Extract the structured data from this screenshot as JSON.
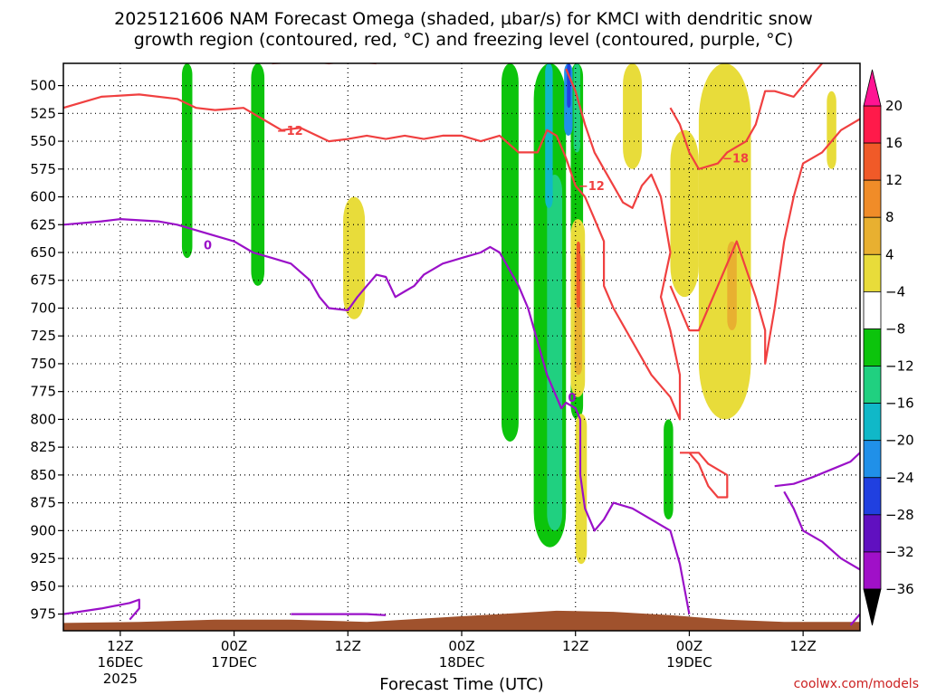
{
  "chart_data": {
    "type": "heatmap",
    "title_line1": "2025121606 NAM Forecast Omega (shaded, µbar/s) for KMCI with dendritic snow",
    "title_line2": "growth region (contoured, red, °C) and freezing level (contoured, purple, °C)",
    "xlabel": "Forecast Time (UTC)",
    "credit": "coolwx.com/models",
    "x_range_hours": [
      0,
      84
    ],
    "y_axis": {
      "scale": "pressure",
      "range_mb": [
        480,
        990
      ],
      "ticks": [
        "500",
        "525",
        "550",
        "575",
        "600",
        "625",
        "650",
        "675",
        "700",
        "725",
        "750",
        "775",
        "800",
        "825",
        "850",
        "875",
        "900",
        "925",
        "950",
        "975"
      ]
    },
    "x_ticks": [
      {
        "hour": 6,
        "label": "12Z",
        "sub1": "16DEC",
        "sub2": "2025"
      },
      {
        "hour": 18,
        "label": "00Z",
        "sub1": "17DEC",
        "sub2": ""
      },
      {
        "hour": 30,
        "label": "12Z",
        "sub1": "",
        "sub2": ""
      },
      {
        "hour": 42,
        "label": "00Z",
        "sub1": "18DEC",
        "sub2": ""
      },
      {
        "hour": 54,
        "label": "12Z",
        "sub1": "",
        "sub2": ""
      },
      {
        "hour": 66,
        "label": "00Z",
        "sub1": "19DEC",
        "sub2": ""
      },
      {
        "hour": 78,
        "label": "12Z",
        "sub1": "",
        "sub2": ""
      }
    ],
    "colorbar": {
      "labels": [
        "20",
        "16",
        "12",
        "8",
        "4",
        "−4",
        "−8",
        "−12",
        "−16",
        "−20",
        "−24",
        "−28",
        "−32",
        "−36"
      ],
      "colors": [
        "#ff1a4a",
        "#f05a28",
        "#f08c28",
        "#e8b030",
        "#e8dc3a",
        "#ffffff",
        "#0cc40c",
        "#20d080",
        "#10b8c8",
        "#2090e8",
        "#2040e0",
        "#6010c0",
        "#a010c8",
        "#b0b0b0"
      ],
      "top_arrow": "#ff1493",
      "bottom_arrow": "#000000"
    },
    "contour_labels": [
      {
        "text": "−12",
        "color": "red"
      },
      {
        "text": "−12",
        "color": "red"
      },
      {
        "text": "−18",
        "color": "red"
      },
      {
        "text": "0",
        "color": "purple"
      },
      {
        "text": "0",
        "color": "purple"
      }
    ],
    "omega_regions": [
      {
        "level": "-4",
        "color": "#0cc40c",
        "t0": 12.5,
        "t1": 13.6,
        "p_top": 480,
        "p_bot": 655
      },
      {
        "level": "-4",
        "color": "#0cc40c",
        "t0": 19.8,
        "t1": 21.2,
        "p_top": 480,
        "p_bot": 680
      },
      {
        "level": "-4",
        "color": "#0cc40c",
        "t0": 46.2,
        "t1": 48.0,
        "p_top": 480,
        "p_bot": 820
      },
      {
        "level": "-4",
        "color": "#0cc40c",
        "t0": 49.6,
        "t1": 53.0,
        "p_top": 480,
        "p_bot": 915
      },
      {
        "level": "-4",
        "color": "#0cc40c",
        "t0": 53.5,
        "t1": 54.8,
        "p_top": 480,
        "p_bot": 800
      },
      {
        "level": "-4",
        "color": "#0cc40c",
        "t0": 63.3,
        "t1": 64.3,
        "p_top": 800,
        "p_bot": 890
      },
      {
        "level": "-8",
        "color": "#20d080",
        "t0": 51.0,
        "t1": 52.6,
        "p_top": 580,
        "p_bot": 900
      },
      {
        "level": "-8",
        "color": "#20d080",
        "t0": 53.8,
        "t1": 54.5,
        "p_top": 480,
        "p_bot": 560
      },
      {
        "level": "-12",
        "color": "#10b8c8",
        "t0": 50.8,
        "t1": 51.6,
        "p_top": 480,
        "p_bot": 610
      },
      {
        "level": "-16",
        "color": "#2090e8",
        "t0": 52.8,
        "t1": 53.7,
        "p_top": 480,
        "p_bot": 545
      },
      {
        "level": "-20",
        "color": "#2040e0",
        "t0": 53.1,
        "t1": 53.5,
        "p_top": 480,
        "p_bot": 520
      },
      {
        "level": "4",
        "color": "#e8dc3a",
        "t0": 29.5,
        "t1": 31.8,
        "p_top": 600,
        "p_bot": 710
      },
      {
        "level": "4",
        "color": "#e8dc3a",
        "t0": 59.0,
        "t1": 61.0,
        "p_top": 480,
        "p_bot": 575
      },
      {
        "level": "4",
        "color": "#e8dc3a",
        "t0": 64.0,
        "t1": 67.0,
        "p_top": 540,
        "p_bot": 690
      },
      {
        "level": "4",
        "color": "#e8dc3a",
        "t0": 67.0,
        "t1": 72.5,
        "p_top": 480,
        "p_bot": 800
      },
      {
        "level": "4",
        "color": "#e8dc3a",
        "t0": 53.5,
        "t1": 55.0,
        "p_top": 620,
        "p_bot": 780
      },
      {
        "level": "4",
        "color": "#e8dc3a",
        "t0": 54.0,
        "t1": 55.2,
        "p_top": 795,
        "p_bot": 930
      },
      {
        "level": "4",
        "color": "#e8dc3a",
        "t0": 80.5,
        "t1": 81.5,
        "p_top": 505,
        "p_bot": 575
      },
      {
        "level": "8",
        "color": "#e8b030",
        "t0": 53.9,
        "t1": 54.7,
        "p_top": 650,
        "p_bot": 760
      },
      {
        "level": "8",
        "color": "#e8b030",
        "t0": 70.0,
        "t1": 71.0,
        "p_top": 640,
        "p_bot": 720
      },
      {
        "level": "12",
        "color": "#f05a28",
        "t0": 54.1,
        "t1": 54.5,
        "p_top": 640,
        "p_bot": 700
      }
    ],
    "red_contours": [
      {
        "level": -12,
        "points": [
          [
            0,
            520
          ],
          [
            4,
            510
          ],
          [
            8,
            508
          ],
          [
            12,
            512
          ],
          [
            14,
            520
          ],
          [
            16,
            522
          ],
          [
            19,
            520
          ],
          [
            21,
            530
          ],
          [
            23,
            540
          ],
          [
            25,
            538
          ],
          [
            28,
            550
          ],
          [
            30,
            548
          ],
          [
            32,
            545
          ],
          [
            34,
            548
          ],
          [
            36,
            545
          ],
          [
            38,
            548
          ],
          [
            40,
            545
          ],
          [
            42,
            545
          ],
          [
            44,
            550
          ],
          [
            46,
            545
          ],
          [
            48,
            560
          ],
          [
            50,
            560
          ],
          [
            51,
            540
          ],
          [
            52,
            545
          ],
          [
            53,
            565
          ],
          [
            54,
            590
          ],
          [
            55,
            600
          ],
          [
            56,
            620
          ],
          [
            57,
            640
          ],
          [
            57,
            680
          ],
          [
            58,
            700
          ],
          [
            60,
            730
          ],
          [
            62,
            760
          ],
          [
            64,
            780
          ],
          [
            65,
            800
          ],
          [
            65,
            760
          ],
          [
            64,
            720
          ],
          [
            63,
            690
          ],
          [
            64,
            650
          ],
          [
            63,
            600
          ],
          [
            62,
            580
          ],
          [
            61,
            590
          ],
          [
            60,
            610
          ],
          [
            59,
            605
          ],
          [
            58,
            590
          ],
          [
            57,
            575
          ],
          [
            56,
            560
          ],
          [
            55,
            535
          ],
          [
            54,
            505
          ],
          [
            53,
            485
          ]
        ]
      },
      {
        "level": -18,
        "points": [
          [
            64,
            520
          ],
          [
            65,
            535
          ],
          [
            66,
            560
          ],
          [
            67,
            575
          ],
          [
            69,
            570
          ],
          [
            70,
            560
          ],
          [
            71,
            555
          ],
          [
            72,
            550
          ],
          [
            73,
            535
          ],
          [
            74,
            505
          ],
          [
            75,
            505
          ],
          [
            77,
            510
          ],
          [
            78,
            500
          ],
          [
            79,
            490
          ],
          [
            80,
            480
          ]
        ]
      },
      {
        "level": -12,
        "points": [
          [
            64,
            680
          ],
          [
            65,
            700
          ],
          [
            66,
            720
          ],
          [
            67,
            720
          ],
          [
            69,
            680
          ],
          [
            71,
            640
          ],
          [
            73,
            690
          ],
          [
            74,
            720
          ],
          [
            74,
            750
          ],
          [
            75,
            700
          ],
          [
            76,
            640
          ],
          [
            77,
            600
          ],
          [
            78,
            570
          ],
          [
            80,
            560
          ],
          [
            82,
            540
          ],
          [
            84,
            530
          ]
        ]
      },
      {
        "level": -12,
        "points": [
          [
            65,
            830
          ],
          [
            66,
            830
          ],
          [
            67,
            840
          ],
          [
            68,
            860
          ],
          [
            69,
            870
          ],
          [
            70,
            870
          ],
          [
            70,
            850
          ],
          [
            68,
            840
          ],
          [
            67,
            830
          ],
          [
            65,
            830
          ]
        ]
      },
      {
        "level": -12,
        "points": [
          [
            22,
            480
          ],
          [
            26,
            478
          ],
          [
            28,
            480
          ],
          [
            30,
            478
          ],
          [
            33,
            480
          ]
        ]
      }
    ],
    "purple_contours": [
      {
        "level": 0,
        "points": [
          [
            0,
            625
          ],
          [
            4,
            622
          ],
          [
            6,
            620
          ],
          [
            10,
            622
          ],
          [
            12,
            625
          ],
          [
            14,
            630
          ],
          [
            16,
            635
          ],
          [
            18,
            640
          ],
          [
            20,
            650
          ],
          [
            22,
            655
          ],
          [
            24,
            660
          ],
          [
            26,
            675
          ],
          [
            27,
            690
          ],
          [
            28,
            700
          ],
          [
            30,
            702
          ],
          [
            31,
            690
          ],
          [
            32,
            680
          ],
          [
            33,
            670
          ],
          [
            34,
            672
          ],
          [
            35,
            690
          ],
          [
            36,
            685
          ],
          [
            37,
            680
          ],
          [
            38,
            670
          ],
          [
            40,
            660
          ],
          [
            42,
            655
          ],
          [
            44,
            650
          ],
          [
            45,
            645
          ],
          [
            46,
            650
          ],
          [
            47,
            665
          ],
          [
            48,
            680
          ],
          [
            49,
            700
          ],
          [
            50,
            730
          ],
          [
            51,
            760
          ],
          [
            52,
            780
          ],
          [
            52.5,
            790
          ],
          [
            53,
            785
          ],
          [
            54,
            790
          ],
          [
            54.5,
            800
          ],
          [
            54.5,
            850
          ],
          [
            55,
            880
          ],
          [
            56,
            900
          ],
          [
            57,
            890
          ],
          [
            58,
            875
          ],
          [
            60,
            880
          ],
          [
            62,
            890
          ],
          [
            64,
            900
          ],
          [
            65,
            930
          ],
          [
            66,
            975
          ]
        ]
      },
      {
        "level": 0,
        "points": [
          [
            0,
            975
          ],
          [
            4,
            970
          ],
          [
            7,
            965
          ],
          [
            8,
            962
          ],
          [
            8,
            970
          ],
          [
            7,
            980
          ]
        ]
      },
      {
        "level": 0,
        "points": [
          [
            24,
            975
          ],
          [
            28,
            975
          ],
          [
            32,
            975
          ],
          [
            34,
            976
          ]
        ]
      },
      {
        "level": 0,
        "points": [
          [
            75,
            860
          ],
          [
            77,
            858
          ],
          [
            79,
            852
          ],
          [
            81,
            845
          ],
          [
            83,
            838
          ],
          [
            84,
            830
          ]
        ]
      },
      {
        "level": 0,
        "points": [
          [
            76,
            865
          ],
          [
            77,
            880
          ],
          [
            78,
            900
          ],
          [
            80,
            910
          ],
          [
            82,
            925
          ],
          [
            84,
            935
          ]
        ]
      },
      {
        "level": 0,
        "points": [
          [
            83,
            985
          ],
          [
            84,
            975
          ]
        ]
      }
    ]
  }
}
